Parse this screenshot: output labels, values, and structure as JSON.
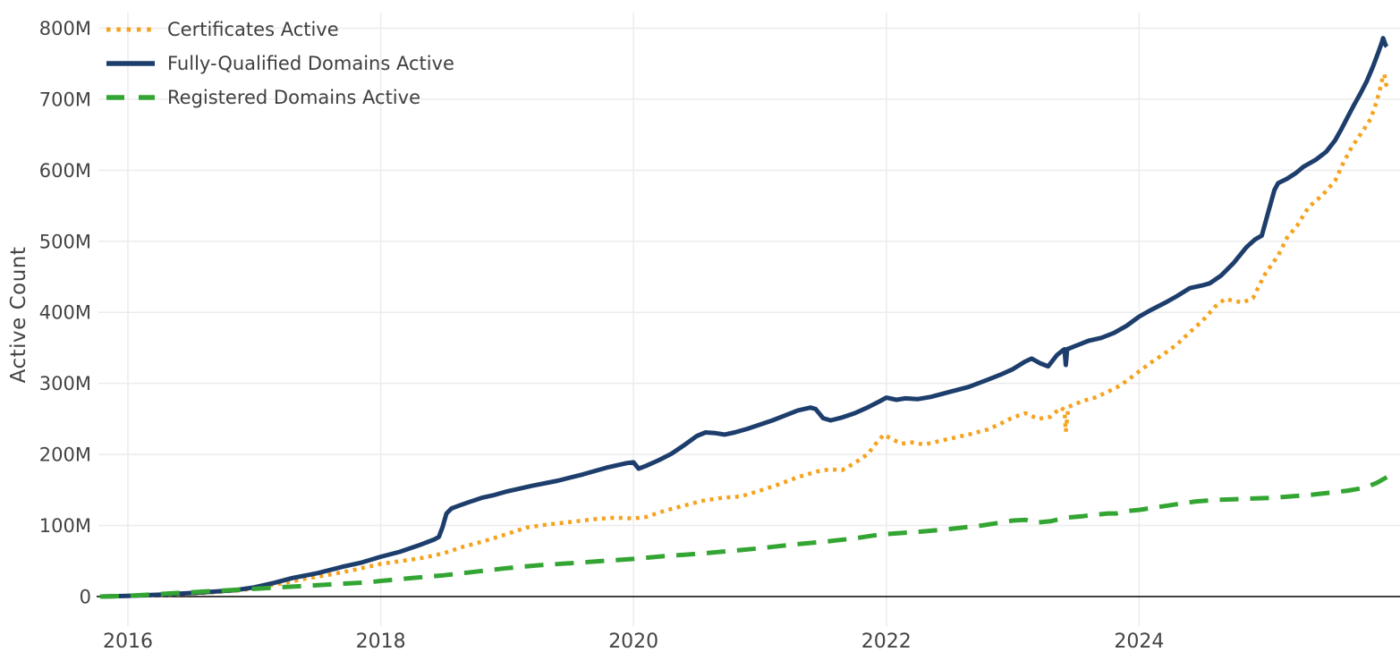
{
  "chart_data": {
    "type": "line",
    "title": "",
    "xlabel": "",
    "ylabel": "Active Count",
    "grid": true,
    "legend_position": "top-left",
    "x_range": [
      2015.75,
      2026.07
    ],
    "y_range_millions": [
      0,
      830
    ],
    "x_ticks": [
      2016,
      2018,
      2020,
      2022,
      2024
    ],
    "x_tick_labels": [
      "2016",
      "2018",
      "2020",
      "2022",
      "2024"
    ],
    "y_ticks_millions": [
      0,
      100,
      200,
      300,
      400,
      500,
      600,
      700,
      800
    ],
    "y_tick_labels": [
      "0",
      "100M",
      "200M",
      "300M",
      "400M",
      "500M",
      "600M",
      "700M",
      "800M"
    ],
    "colors": {
      "grid": "#ececec",
      "zero_axis": "#3f3f3f",
      "tick_label": "#444444"
    },
    "series": [
      {
        "name": "Certificates Active",
        "color": "#f5a31e",
        "style": "dotted",
        "points": [
          [
            2015.78,
            0
          ],
          [
            2016.0,
            1
          ],
          [
            2016.3,
            2
          ],
          [
            2016.6,
            5
          ],
          [
            2016.9,
            9
          ],
          [
            2017.0,
            12
          ],
          [
            2017.2,
            18
          ],
          [
            2017.4,
            25
          ],
          [
            2017.6,
            31
          ],
          [
            2017.8,
            38
          ],
          [
            2018.0,
            46
          ],
          [
            2018.2,
            51
          ],
          [
            2018.35,
            55
          ],
          [
            2018.5,
            61
          ],
          [
            2018.65,
            70
          ],
          [
            2018.8,
            77
          ],
          [
            2019.0,
            88
          ],
          [
            2019.15,
            97
          ],
          [
            2019.3,
            101
          ],
          [
            2019.5,
            105
          ],
          [
            2019.7,
            109
          ],
          [
            2019.85,
            111
          ],
          [
            2020.0,
            110
          ],
          [
            2020.1,
            112
          ],
          [
            2020.25,
            121
          ],
          [
            2020.4,
            128
          ],
          [
            2020.55,
            135
          ],
          [
            2020.7,
            139
          ],
          [
            2020.85,
            141
          ],
          [
            2021.0,
            149
          ],
          [
            2021.15,
            158
          ],
          [
            2021.3,
            168
          ],
          [
            2021.45,
            176
          ],
          [
            2021.55,
            179
          ],
          [
            2021.65,
            178
          ],
          [
            2021.75,
            188
          ],
          [
            2021.85,
            200
          ],
          [
            2021.93,
            218
          ],
          [
            2021.98,
            228
          ],
          [
            2022.05,
            221
          ],
          [
            2022.12,
            215
          ],
          [
            2022.2,
            217
          ],
          [
            2022.3,
            214
          ],
          [
            2022.4,
            218
          ],
          [
            2022.5,
            222
          ],
          [
            2022.65,
            228
          ],
          [
            2022.8,
            235
          ],
          [
            2022.9,
            243
          ],
          [
            2023.0,
            252
          ],
          [
            2023.1,
            258
          ],
          [
            2023.2,
            250
          ],
          [
            2023.3,
            253
          ],
          [
            2023.38,
            266
          ],
          [
            2023.41,
            262
          ],
          [
            2023.42,
            232
          ],
          [
            2023.44,
            267
          ],
          [
            2023.55,
            275
          ],
          [
            2023.65,
            280
          ],
          [
            2023.75,
            288
          ],
          [
            2023.85,
            297
          ],
          [
            2023.95,
            310
          ],
          [
            2024.0,
            317
          ],
          [
            2024.1,
            330
          ],
          [
            2024.2,
            342
          ],
          [
            2024.3,
            355
          ],
          [
            2024.4,
            372
          ],
          [
            2024.5,
            388
          ],
          [
            2024.6,
            408
          ],
          [
            2024.68,
            419
          ],
          [
            2024.75,
            416
          ],
          [
            2024.82,
            414
          ],
          [
            2024.9,
            420
          ],
          [
            2024.95,
            438
          ],
          [
            2025.0,
            455
          ],
          [
            2025.1,
            480
          ],
          [
            2025.17,
            505
          ],
          [
            2025.25,
            522
          ],
          [
            2025.34,
            548
          ],
          [
            2025.45,
            565
          ],
          [
            2025.55,
            585
          ],
          [
            2025.62,
            612
          ],
          [
            2025.68,
            632
          ],
          [
            2025.73,
            645
          ],
          [
            2025.78,
            658
          ],
          [
            2025.83,
            672
          ],
          [
            2025.87,
            692
          ],
          [
            2025.9,
            710
          ],
          [
            2025.92,
            726
          ],
          [
            2025.94,
            735
          ],
          [
            2025.955,
            720
          ],
          [
            2025.97,
            728
          ]
        ]
      },
      {
        "name": "Fully-Qualified Domains Active",
        "color": "#1d3e6c",
        "style": "solid",
        "points": [
          [
            2015.78,
            0
          ],
          [
            2016.0,
            1
          ],
          [
            2016.3,
            3
          ],
          [
            2016.6,
            6
          ],
          [
            2016.85,
            9
          ],
          [
            2017.0,
            13
          ],
          [
            2017.15,
            19
          ],
          [
            2017.3,
            26
          ],
          [
            2017.5,
            33
          ],
          [
            2017.7,
            42
          ],
          [
            2017.85,
            48
          ],
          [
            2018.0,
            56
          ],
          [
            2018.15,
            63
          ],
          [
            2018.3,
            72
          ],
          [
            2018.42,
            80
          ],
          [
            2018.46,
            84
          ],
          [
            2018.49,
            98
          ],
          [
            2018.52,
            117
          ],
          [
            2018.56,
            124
          ],
          [
            2018.62,
            128
          ],
          [
            2018.7,
            133
          ],
          [
            2018.8,
            139
          ],
          [
            2018.9,
            143
          ],
          [
            2019.0,
            148
          ],
          [
            2019.2,
            156
          ],
          [
            2019.4,
            163
          ],
          [
            2019.6,
            172
          ],
          [
            2019.8,
            182
          ],
          [
            2019.95,
            188
          ],
          [
            2020.0,
            189
          ],
          [
            2020.04,
            180
          ],
          [
            2020.1,
            184
          ],
          [
            2020.2,
            192
          ],
          [
            2020.3,
            201
          ],
          [
            2020.4,
            213
          ],
          [
            2020.5,
            226
          ],
          [
            2020.57,
            231
          ],
          [
            2020.65,
            230
          ],
          [
            2020.72,
            228
          ],
          [
            2020.8,
            231
          ],
          [
            2020.9,
            236
          ],
          [
            2021.0,
            242
          ],
          [
            2021.1,
            248
          ],
          [
            2021.2,
            255
          ],
          [
            2021.3,
            262
          ],
          [
            2021.4,
            266
          ],
          [
            2021.44,
            264
          ],
          [
            2021.5,
            251
          ],
          [
            2021.56,
            248
          ],
          [
            2021.65,
            252
          ],
          [
            2021.75,
            258
          ],
          [
            2021.85,
            266
          ],
          [
            2021.95,
            275
          ],
          [
            2022.0,
            280
          ],
          [
            2022.08,
            277
          ],
          [
            2022.15,
            279
          ],
          [
            2022.25,
            278
          ],
          [
            2022.35,
            281
          ],
          [
            2022.5,
            288
          ],
          [
            2022.65,
            295
          ],
          [
            2022.8,
            305
          ],
          [
            2022.9,
            312
          ],
          [
            2023.0,
            320
          ],
          [
            2023.1,
            331
          ],
          [
            2023.15,
            335
          ],
          [
            2023.22,
            328
          ],
          [
            2023.28,
            324
          ],
          [
            2023.35,
            340
          ],
          [
            2023.4,
            347
          ],
          [
            2023.41,
            348
          ],
          [
            2023.42,
            326
          ],
          [
            2023.43,
            348
          ],
          [
            2023.5,
            353
          ],
          [
            2023.6,
            360
          ],
          [
            2023.7,
            364
          ],
          [
            2023.8,
            371
          ],
          [
            2023.9,
            381
          ],
          [
            2024.0,
            394
          ],
          [
            2024.1,
            404
          ],
          [
            2024.2,
            413
          ],
          [
            2024.3,
            423
          ],
          [
            2024.4,
            434
          ],
          [
            2024.5,
            438
          ],
          [
            2024.56,
            441
          ],
          [
            2024.65,
            452
          ],
          [
            2024.75,
            470
          ],
          [
            2024.85,
            492
          ],
          [
            2024.92,
            503
          ],
          [
            2024.97,
            508
          ],
          [
            2025.02,
            540
          ],
          [
            2025.07,
            572
          ],
          [
            2025.1,
            582
          ],
          [
            2025.17,
            588
          ],
          [
            2025.24,
            596
          ],
          [
            2025.3,
            605
          ],
          [
            2025.4,
            615
          ],
          [
            2025.48,
            626
          ],
          [
            2025.55,
            642
          ],
          [
            2025.6,
            658
          ],
          [
            2025.65,
            675
          ],
          [
            2025.7,
            692
          ],
          [
            2025.75,
            708
          ],
          [
            2025.8,
            725
          ],
          [
            2025.85,
            746
          ],
          [
            2025.89,
            765
          ],
          [
            2025.92,
            780
          ],
          [
            2025.93,
            786
          ],
          [
            2025.95,
            776
          ],
          [
            2025.96,
            774
          ]
        ]
      },
      {
        "name": "Registered Domains Active",
        "color": "#33a532",
        "style": "dashed",
        "points": [
          [
            2015.78,
            0
          ],
          [
            2016.0,
            1
          ],
          [
            2016.3,
            4
          ],
          [
            2016.6,
            7
          ],
          [
            2016.9,
            10
          ],
          [
            2017.1,
            12
          ],
          [
            2017.3,
            14
          ],
          [
            2017.5,
            16
          ],
          [
            2017.7,
            18
          ],
          [
            2017.9,
            20
          ],
          [
            2018.0,
            22
          ],
          [
            2018.25,
            26
          ],
          [
            2018.5,
            30
          ],
          [
            2018.75,
            35
          ],
          [
            2019.0,
            40
          ],
          [
            2019.25,
            44
          ],
          [
            2019.5,
            47
          ],
          [
            2019.75,
            50
          ],
          [
            2020.0,
            53
          ],
          [
            2020.25,
            57
          ],
          [
            2020.5,
            60
          ],
          [
            2020.75,
            64
          ],
          [
            2021.0,
            68
          ],
          [
            2021.25,
            73
          ],
          [
            2021.5,
            77
          ],
          [
            2021.75,
            82
          ],
          [
            2021.9,
            86
          ],
          [
            2022.0,
            88
          ],
          [
            2022.25,
            91
          ],
          [
            2022.5,
            95
          ],
          [
            2022.75,
            100
          ],
          [
            2022.9,
            104
          ],
          [
            2023.0,
            107
          ],
          [
            2023.1,
            108
          ],
          [
            2023.18,
            104
          ],
          [
            2023.3,
            106
          ],
          [
            2023.42,
            111
          ],
          [
            2023.55,
            113
          ],
          [
            2023.65,
            115
          ],
          [
            2023.75,
            117
          ],
          [
            2023.82,
            117
          ],
          [
            2023.88,
            120
          ],
          [
            2024.0,
            122
          ],
          [
            2024.15,
            126
          ],
          [
            2024.3,
            130
          ],
          [
            2024.45,
            134
          ],
          [
            2024.6,
            136
          ],
          [
            2024.75,
            137
          ],
          [
            2024.9,
            138
          ],
          [
            2025.05,
            139
          ],
          [
            2025.2,
            141
          ],
          [
            2025.35,
            143
          ],
          [
            2025.5,
            146
          ],
          [
            2025.65,
            149
          ],
          [
            2025.78,
            153
          ],
          [
            2025.88,
            160
          ],
          [
            2025.96,
            168
          ]
        ]
      }
    ]
  }
}
